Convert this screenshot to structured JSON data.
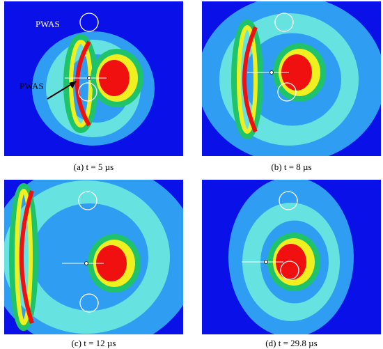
{
  "panels": [
    {
      "caption": "(a) t = 5 µs",
      "labels": [
        "PWAS",
        "PWAS"
      ]
    },
    {
      "caption": "(b) t = 8 µs"
    },
    {
      "caption": "(c) t = 12 µs"
    },
    {
      "caption": "(d) t = 29.8 µs"
    }
  ]
}
